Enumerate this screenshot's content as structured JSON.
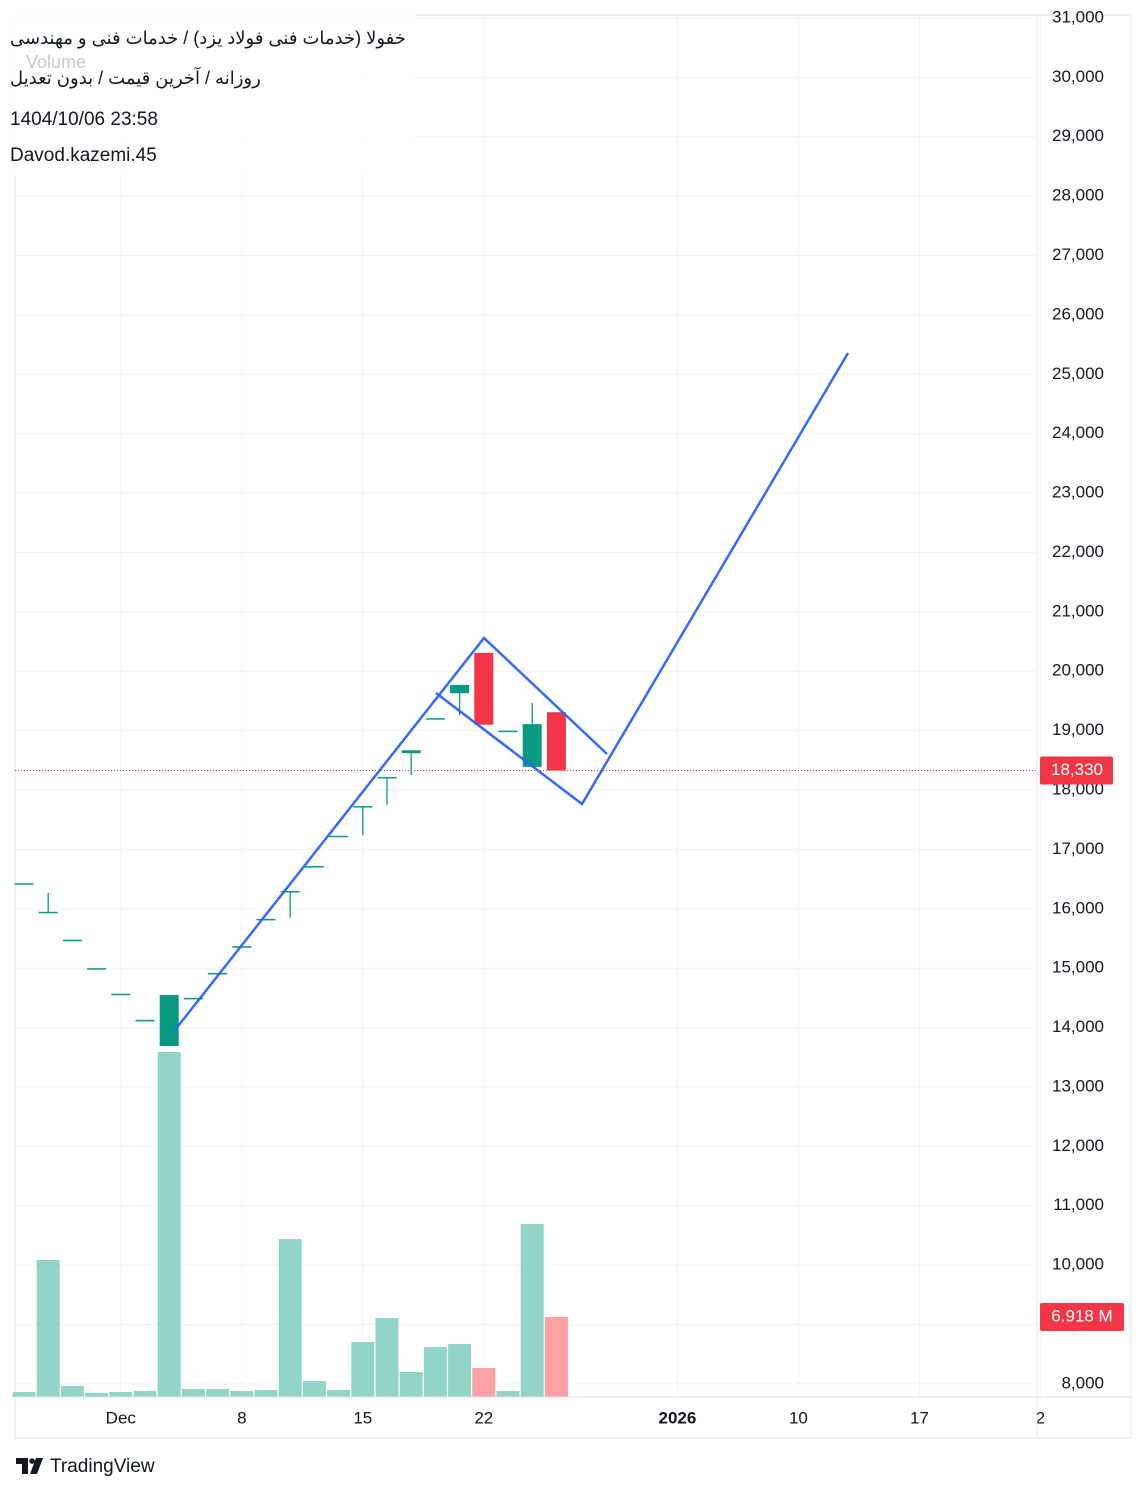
{
  "chart_data": {
    "type": "candlestick",
    "title": "خفولا (خدمات فنی فولاد یزد) / خدمات فنی و مهندسی",
    "subtitle": "روزانه / آخرین قیمت / بدون تعدیل",
    "timestamp": "1404/10/06 23:58",
    "author": "Davod.kazemi.45",
    "volume_title": "Volume",
    "brand": "TradingView",
    "categories": [
      null,
      null,
      null,
      null,
      "Dec",
      null,
      null,
      null,
      null,
      "8",
      null,
      null,
      null,
      null,
      "15",
      null,
      null,
      null,
      null,
      "22",
      null,
      null,
      null,
      null,
      null,
      null,
      null,
      "2026",
      null,
      null,
      null,
      null,
      "10",
      null,
      null,
      null,
      null,
      "17",
      null,
      null,
      null,
      null,
      "2"
    ],
    "open": [
      16430,
      15950,
      15480,
      15000,
      14570,
      14130,
      13690,
      14500,
      14920,
      15370,
      15830,
      16300,
      16720,
      17230,
      17730,
      18220,
      18620,
      19210,
      19630,
      20310,
      19000,
      18390,
      19310,
      null,
      null,
      null,
      null,
      null,
      null,
      null,
      null,
      null,
      null,
      null,
      null,
      null,
      null,
      null,
      null,
      null,
      null,
      null,
      null
    ],
    "high": [
      16430,
      16270,
      15480,
      15000,
      14570,
      14130,
      14550,
      14500,
      14920,
      15370,
      15830,
      16300,
      16720,
      17230,
      17730,
      18220,
      18670,
      19210,
      19770,
      20310,
      19000,
      19470,
      19310,
      null,
      null,
      null,
      null,
      null,
      null,
      null,
      null,
      null,
      null,
      null,
      null,
      null,
      null,
      null,
      null,
      null,
      null,
      null,
      null
    ],
    "low": [
      16430,
      15950,
      15480,
      15000,
      14570,
      14130,
      13690,
      14500,
      14920,
      15370,
      15830,
      15850,
      16720,
      17230,
      17240,
      17750,
      18250,
      19210,
      19260,
      19100,
      19000,
      18390,
      18330,
      null,
      null,
      null,
      null,
      null,
      null,
      null,
      null,
      null,
      null,
      null,
      null,
      null,
      null,
      null,
      null,
      null,
      null,
      null,
      null
    ],
    "close": [
      16430,
      15950,
      15480,
      15000,
      14570,
      14130,
      14550,
      14500,
      14920,
      15370,
      15830,
      16300,
      16720,
      17230,
      17730,
      18220,
      18670,
      19210,
      19770,
      19100,
      19000,
      19110,
      18330,
      null,
      null,
      null,
      null,
      null,
      null,
      null,
      null,
      null,
      null,
      null,
      null,
      null,
      null,
      null,
      null,
      null,
      null,
      null,
      null
    ],
    "volume": [
      0.43,
      11.85,
      0.95,
      0.35,
      0.43,
      0.52,
      29.84,
      0.69,
      0.69,
      0.52,
      0.61,
      13.66,
      1.38,
      0.61,
      4.76,
      6.83,
      2.16,
      4.32,
      4.58,
      2.51,
      0.52,
      14.96,
      6.918,
      null,
      null,
      null,
      null,
      null,
      null,
      null,
      null,
      null,
      null,
      null,
      null,
      null,
      null,
      null,
      null,
      null,
      null,
      null,
      null
    ],
    "last_volume_label": "6.918 M",
    "last_price": {
      "value": 18330,
      "label": "18,330"
    },
    "up_color": "#089981",
    "down_color": "#f23645",
    "volume_up_color": "#92d5c8",
    "volume_down_color": "#faa1a4",
    "ylim": [
      7780,
      31050
    ],
    "yticks": [
      {
        "value": 8000,
        "label": "8,000"
      },
      {
        "value": 9000,
        "label": "9,000"
      },
      {
        "value": 10000,
        "label": "10,000"
      },
      {
        "value": 11000,
        "label": "11,000"
      },
      {
        "value": 12000,
        "label": "12,000"
      },
      {
        "value": 13000,
        "label": "13,000"
      },
      {
        "value": 14000,
        "label": "14,000"
      },
      {
        "value": 15000,
        "label": "15,000"
      },
      {
        "value": 16000,
        "label": "16,000"
      },
      {
        "value": 17000,
        "label": "17,000"
      },
      {
        "value": 18000,
        "label": "18,000"
      },
      {
        "value": 19000,
        "label": "19,000"
      },
      {
        "value": 20000,
        "label": "20,000"
      },
      {
        "value": 21000,
        "label": "21,000"
      },
      {
        "value": 22000,
        "label": "22,000"
      },
      {
        "value": 23000,
        "label": "23,000"
      },
      {
        "value": 24000,
        "label": "24,000"
      },
      {
        "value": 25000,
        "label": "25,000"
      },
      {
        "value": 26000,
        "label": "26,000"
      },
      {
        "value": 27000,
        "label": "27,000"
      },
      {
        "value": 28000,
        "label": "28,000"
      },
      {
        "value": 29000,
        "label": "29,000"
      },
      {
        "value": 30000,
        "label": "30,000"
      },
      {
        "value": 31000,
        "label": "31,000"
      }
    ],
    "grid": true
  }
}
